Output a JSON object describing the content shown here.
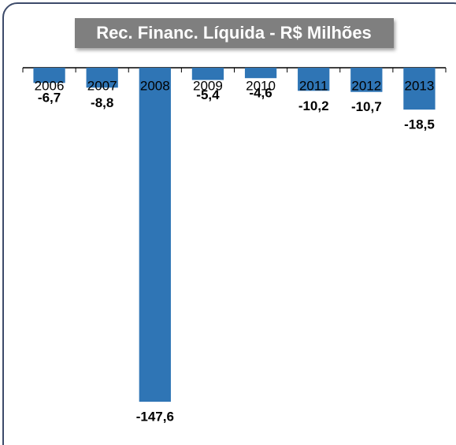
{
  "chart_data": {
    "type": "bar",
    "title": "Rec. Financ. Líquida - R$ Milhões",
    "categories": [
      "2006",
      "2007",
      "2008",
      "2009",
      "2010",
      "2011",
      "2012",
      "2013"
    ],
    "values": [
      -6.7,
      -8.8,
      -147.6,
      -5.4,
      -4.6,
      -10.2,
      -10.7,
      -18.5
    ],
    "value_labels": [
      "-6,7",
      "-8,8",
      "-147,6",
      "-5,4",
      "-4,6",
      "-10,2",
      "-10,7",
      "-18,5"
    ],
    "color": "#2f75b5",
    "ylim": [
      -150,
      0
    ]
  }
}
